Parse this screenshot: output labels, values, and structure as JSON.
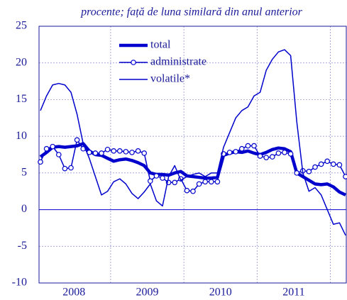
{
  "chart_data": {
    "type": "line",
    "title": "procente; față de luna similară din anul anterior",
    "categories": [
      null,
      null,
      null,
      null,
      null,
      "2008",
      null,
      null,
      null,
      null,
      null,
      null,
      null,
      null,
      null,
      null,
      null,
      "2009",
      null,
      null,
      null,
      null,
      null,
      null,
      null,
      null,
      null,
      null,
      null,
      "2010",
      null,
      null,
      null,
      null,
      null,
      null,
      null,
      null,
      null,
      null,
      null,
      "2011",
      null,
      null,
      null,
      null,
      null,
      null,
      null,
      null,
      null
    ],
    "series": [
      {
        "name": "total",
        "color": "#0000cc",
        "linewidth": 4.5,
        "marker": "none",
        "values": [
          7.2,
          7.8,
          8.5,
          8.6,
          8.5,
          8.6,
          8.7,
          9.0,
          8.0,
          7.5,
          7.4,
          7.0,
          6.6,
          6.8,
          6.9,
          6.7,
          6.4,
          6.0,
          5.0,
          4.8,
          4.8,
          4.7,
          5.0,
          5.2,
          4.6,
          4.5,
          4.4,
          4.3,
          4.3,
          4.4,
          7.4,
          7.7,
          7.9,
          7.8,
          8.0,
          7.7,
          7.5,
          7.8,
          8.2,
          8.4,
          8.3,
          7.9,
          5.0,
          4.5,
          4.0,
          3.5,
          3.4,
          3.5,
          3.1,
          2.4,
          2.0
        ]
      },
      {
        "name": "administrate",
        "color": "#0000cc",
        "linewidth": 1.5,
        "marker": "circle",
        "values": [
          6.5,
          8.3,
          8.6,
          7.5,
          5.6,
          5.7,
          9.5,
          8.3,
          7.8,
          7.7,
          7.7,
          8.2,
          8.0,
          8.0,
          7.9,
          7.8,
          8.0,
          7.7,
          3.9,
          4.6,
          4.3,
          3.7,
          3.7,
          4.2,
          2.6,
          2.5,
          3.5,
          3.8,
          3.8,
          3.8,
          7.6,
          7.8,
          7.9,
          8.3,
          8.7,
          8.7,
          7.3,
          7.1,
          7.2,
          7.7,
          7.8,
          7.6,
          5.0,
          5.3,
          5.2,
          5.8,
          6.2,
          6.6,
          6.2,
          6.1,
          4.5
        ]
      },
      {
        "name": "volatile*",
        "color": "#0000cc",
        "linewidth": 1.5,
        "marker": "none",
        "values": [
          13.5,
          15.5,
          17.0,
          17.2,
          17.0,
          16.0,
          13.0,
          9.0,
          7.0,
          4.5,
          2.0,
          2.5,
          3.8,
          4.2,
          3.5,
          2.2,
          1.5,
          2.4,
          3.5,
          1.2,
          0.5,
          4.5,
          6.0,
          4.0,
          4.5,
          4.8,
          5.0,
          4.5,
          5.0,
          5.0,
          8.5,
          10.5,
          12.5,
          13.5,
          14.0,
          15.5,
          16.0,
          19.0,
          20.5,
          21.5,
          21.8,
          21.0,
          12.0,
          5.0,
          2.5,
          3.0,
          2.0,
          0.0,
          -2.0,
          -1.8,
          -3.5
        ]
      }
    ],
    "ylim": [
      -10,
      25
    ],
    "yticks": [
      -10,
      -5,
      0,
      5,
      10,
      15,
      20,
      25
    ],
    "grid": true,
    "legend": "top"
  }
}
